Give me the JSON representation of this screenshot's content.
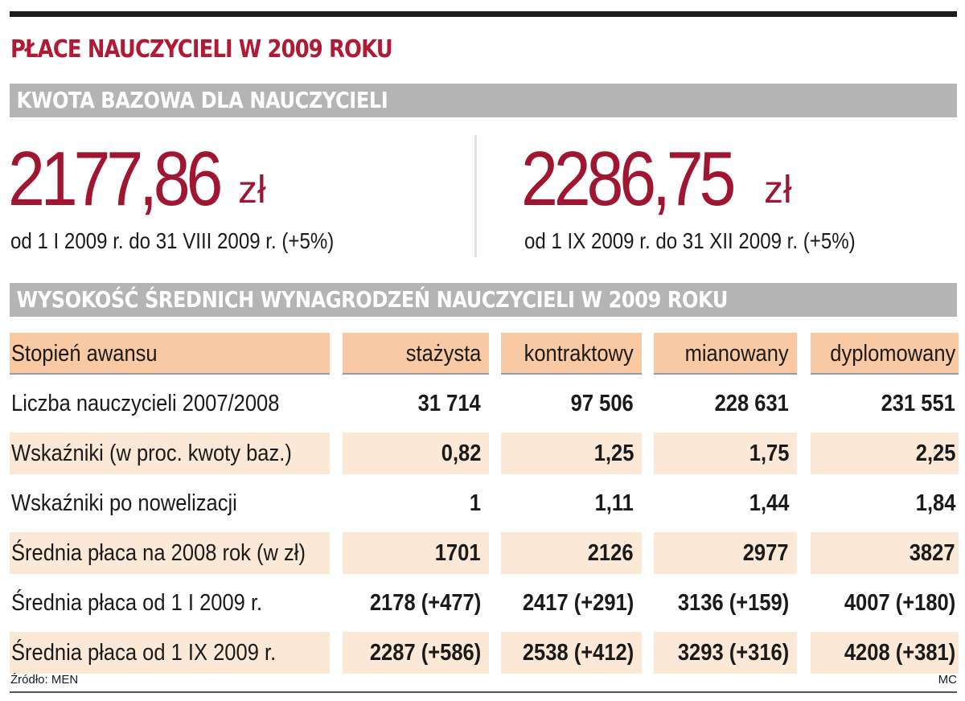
{
  "title": "PŁACE NAUCZYCIELI W 2009 ROKU",
  "base_section": {
    "heading": "KWOTA BAZOWA DLA NAUCZYCIELI",
    "amounts": [
      {
        "value": "2177,86",
        "currency": "zł",
        "period": "od 1 I 2009 r. do 31 VIII 2009 r. (+5%)"
      },
      {
        "value": "2286,75",
        "currency": "zł",
        "period": "od 1 IX 2009 r. do 31 XII 2009 r. (+5%)"
      }
    ]
  },
  "table_section": {
    "heading": "WYSOKOŚĆ ŚREDNICH WYNAGRODZEŃ NAUCZYCIELI W 2009 ROKU",
    "columns": [
      "Stopień awansu",
      "stażysta",
      "kontraktowy",
      "mianowany",
      "dyplomowany"
    ],
    "rows": [
      [
        "Liczba nauczycieli 2007/2008",
        "31 714",
        "97 506",
        "228 631",
        "231 551"
      ],
      [
        "Wskaźniki  (w proc. kwoty baz.)",
        "0,82",
        "1,25",
        "1,75",
        "2,25"
      ],
      [
        "Wskaźniki po nowelizacji",
        "1",
        "1,11",
        "1,44",
        "1,84"
      ],
      [
        "Średnia płaca na 2008 rok (w zł)",
        "1701",
        "2126",
        "2977",
        "3827"
      ],
      [
        "Średnia płaca od 1 I 2009 r.",
        "2178 (+477)",
        "2417 (+291)",
        "3136 (+159)",
        "4007 (+180)"
      ],
      [
        "Średnia płaca od 1 IX 2009 r.",
        "2287 (+586)",
        "2538 (+412)",
        "3293 (+316)",
        "4208 (+381)"
      ]
    ]
  },
  "source": "Źródło: MEN",
  "credit": "MC",
  "colors": {
    "title_red": "#b01a35",
    "amount_red": "#a01530",
    "bar_gray": "#b4b4b4",
    "header_orange": "#f8c9a2",
    "row_tint": "#fbe8d7"
  }
}
